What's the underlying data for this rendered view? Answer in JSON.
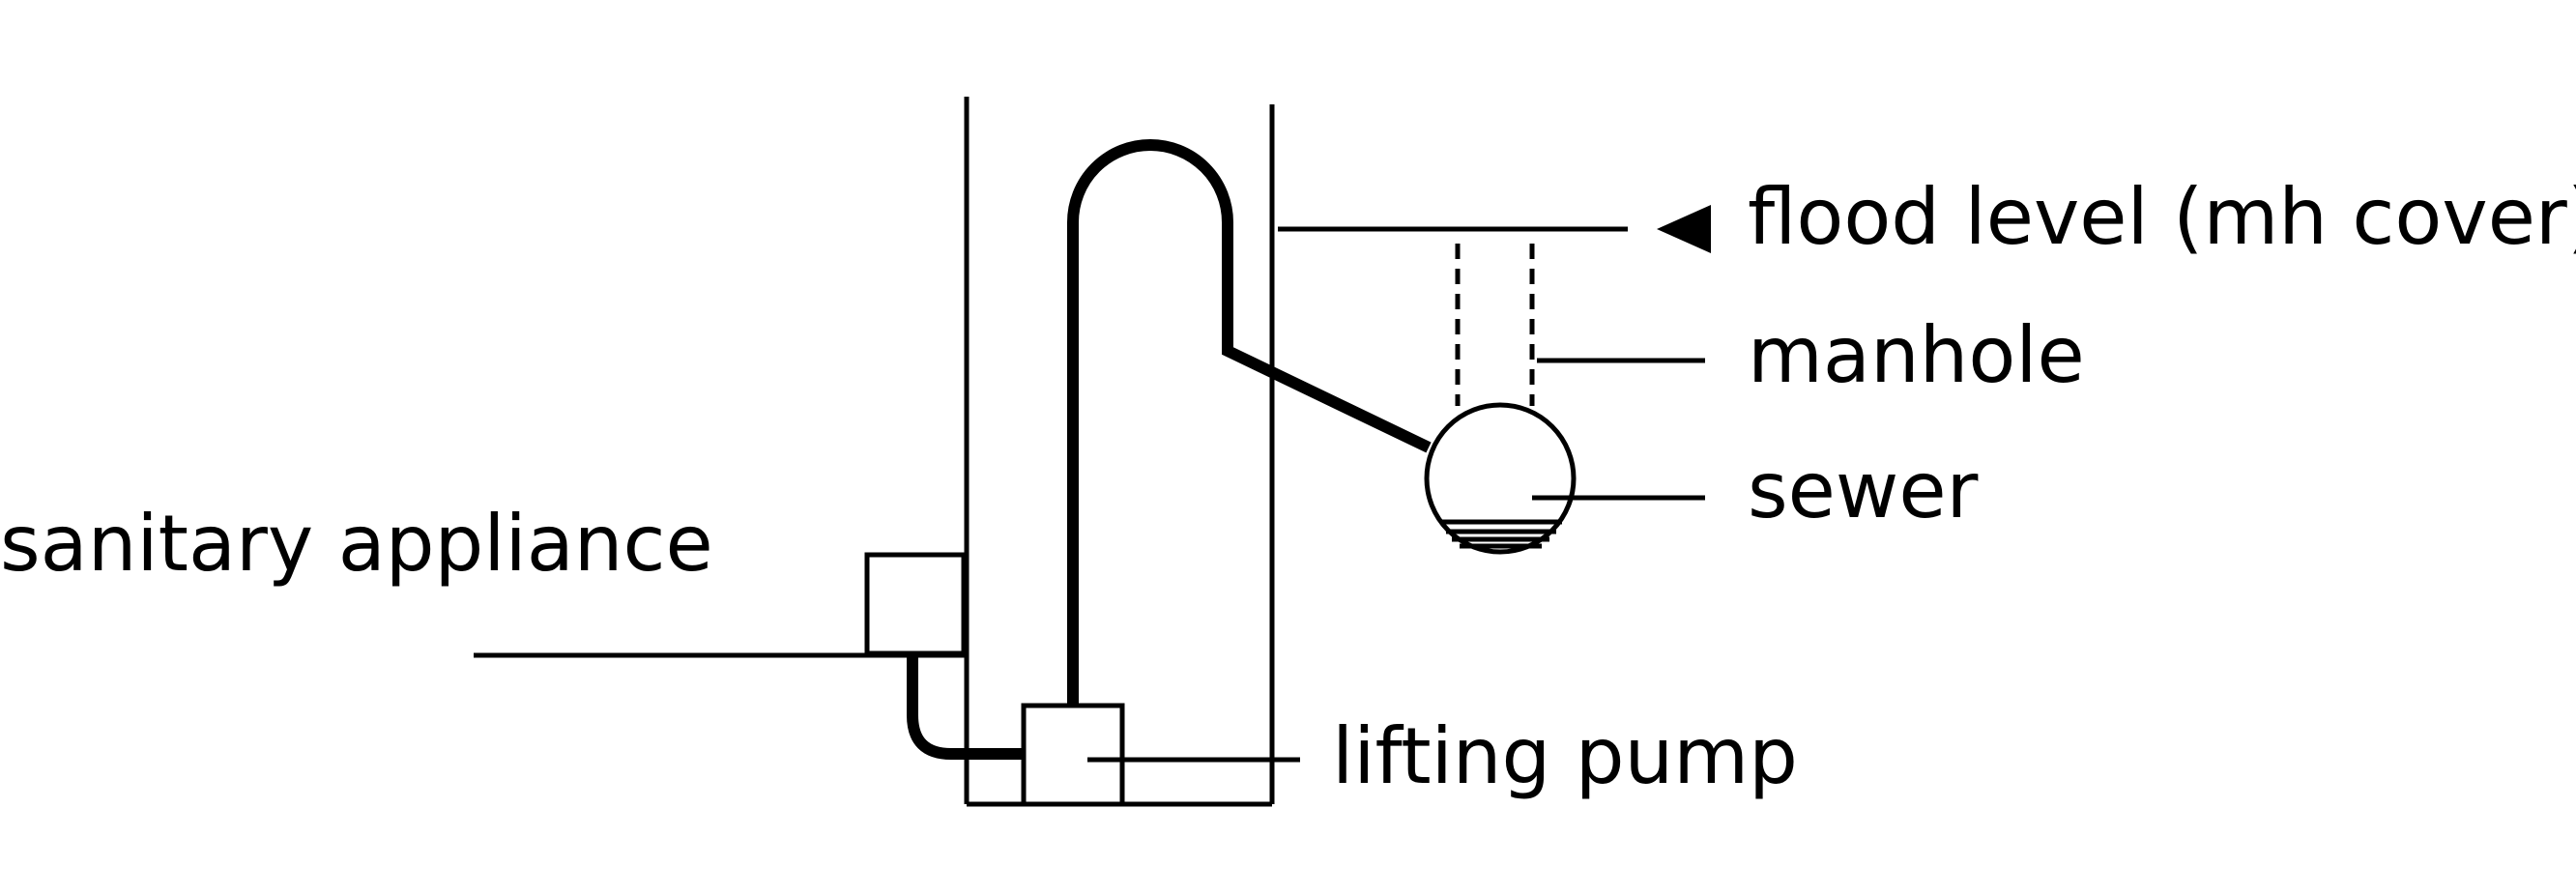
{
  "labels": {
    "flood_level": "flood level (mh cover)",
    "manhole": "manhole",
    "sewer": "sewer",
    "sanitary_appliance": "sanitary appliance",
    "lifting_pump": "lifting pump"
  },
  "colors": {
    "ink": "#000000",
    "background": "#ffffff"
  },
  "icons": {
    "flood_marker": "triangle-left-icon"
  }
}
